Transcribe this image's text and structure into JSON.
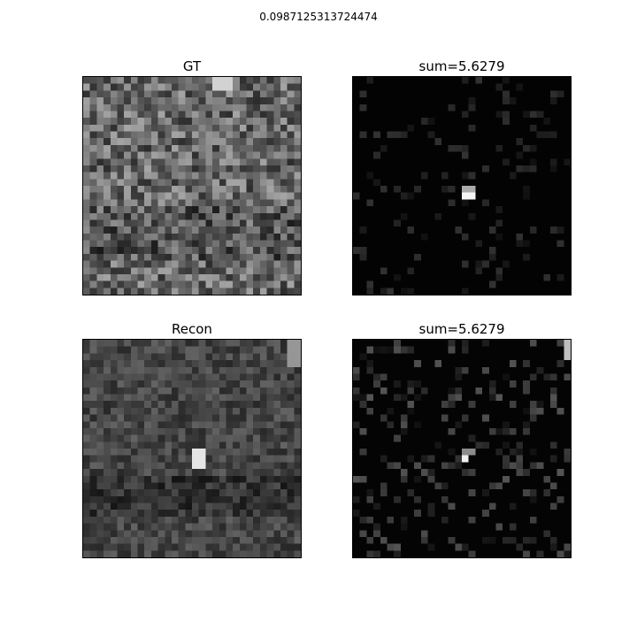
{
  "figure": {
    "title": "0.0987125313724474"
  },
  "panels": [
    {
      "key": "gt",
      "title": "GT",
      "style": "texture-mid",
      "colormap": "gray"
    },
    {
      "key": "ul",
      "title": "sum=5.6279",
      "style": "sparse-dark",
      "colormap": "gray"
    },
    {
      "key": "recon",
      "title": "Recon",
      "style": "texture-blocky",
      "colormap": "gray"
    },
    {
      "key": "ll",
      "title": "sum=5.6279",
      "style": "sparse-dark",
      "colormap": "gray"
    }
  ]
}
